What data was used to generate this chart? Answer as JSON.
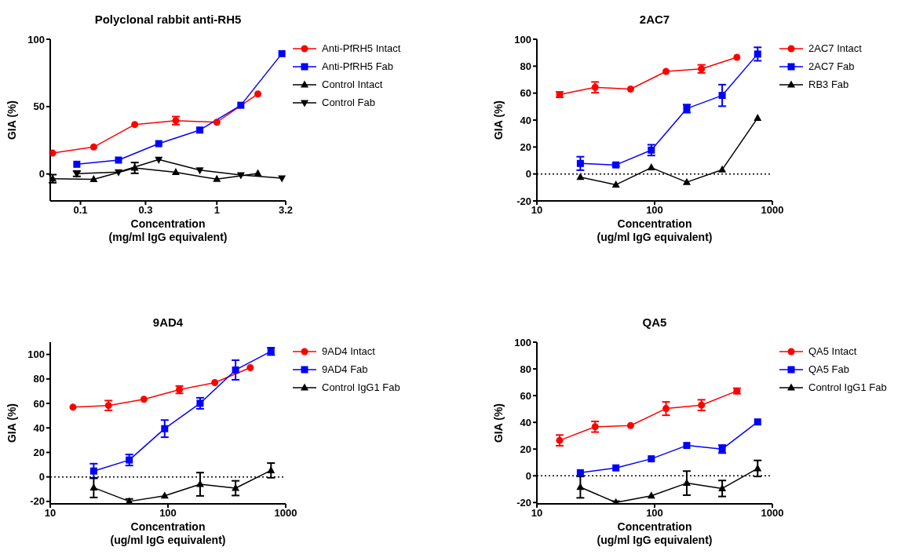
{
  "chart_data": [
    {
      "type": "line",
      "title": "Polyclonal rabbit anti-RH5",
      "xlabel": "Concentration\n(mg/ml IgG equivalent)",
      "ylabel": "GIA (%)",
      "log": "x",
      "xlim": [
        0.06,
        3.2
      ],
      "xticks": [
        0.1,
        0.3,
        1,
        3.2
      ],
      "ylim": [
        -20,
        100
      ],
      "yticks": [
        0,
        50,
        100
      ],
      "legend": "top right",
      "series": [
        {
          "name": "Anti-PfRH5 Intact",
          "color": "#ff0000",
          "marker": "circle",
          "x": [
            0.0625,
            0.125,
            0.25,
            0.5,
            1,
            2
          ],
          "values": [
            15.5,
            20,
            36.7,
            39.6,
            38.4,
            59.4
          ],
          "errors": [
            null,
            null,
            null,
            3,
            null,
            null
          ]
        },
        {
          "name": "Anti-PfRH5 Fab",
          "color": "#0000ff",
          "marker": "square",
          "x": [
            0.094,
            0.19,
            0.375,
            0.75,
            1.5,
            3
          ],
          "values": [
            7.2,
            10.3,
            22.5,
            32.6,
            51,
            89.3
          ]
        },
        {
          "name": "Control Intact",
          "color": "#000000",
          "marker": "triangle",
          "x": [
            0.0625,
            0.125,
            0.25,
            0.5,
            1,
            2
          ],
          "values": [
            -3.5,
            -4,
            4.5,
            1.2,
            -3.9,
            0.4
          ],
          "errors": [
            3,
            null,
            4,
            null,
            null,
            null
          ]
        },
        {
          "name": "Control Fab",
          "color": "#000000",
          "marker": "triangle-down",
          "x": [
            0.094,
            0.19,
            0.375,
            0.75,
            1.5,
            3
          ],
          "values": [
            0.2,
            1.4,
            10.7,
            2.9,
            -0.8,
            -3.1
          ],
          "errors": [
            2,
            null,
            null,
            null,
            null,
            null
          ]
        }
      ]
    },
    {
      "type": "line",
      "title": "2AC7",
      "xlabel": "Concentration\n(ug/ml IgG equivalent)",
      "ylabel": "GIA (%)",
      "log": "x",
      "xlim": [
        10,
        1000
      ],
      "xticks": [
        10,
        100,
        1000
      ],
      "ylim": [
        -20,
        100
      ],
      "yticks": [
        -20,
        0,
        20,
        40,
        60,
        80,
        100
      ],
      "legend": "top right",
      "ref_lines": [
        {
          "axis": "y",
          "value": 0,
          "line_style": "dotted"
        }
      ],
      "series": [
        {
          "name": "2AC7 Intact",
          "color": "#ff0000",
          "marker": "circle",
          "x": [
            15.6,
            31.25,
            62.5,
            125,
            250,
            500
          ],
          "values": [
            58.9,
            64.3,
            63,
            76.1,
            78,
            86.6
          ],
          "errors": [
            2,
            4,
            null,
            null,
            3,
            null
          ]
        },
        {
          "name": "2AC7 Fab",
          "color": "#0000ff",
          "marker": "square",
          "x": [
            23.4,
            46.9,
            93.75,
            187.5,
            375,
            750
          ],
          "values": [
            7.8,
            6.7,
            17.7,
            48.5,
            58.3,
            89
          ],
          "errors": [
            5,
            1,
            4,
            3,
            8,
            5
          ]
        },
        {
          "name": "RB3 Fab",
          "color": "#000000",
          "marker": "triangle",
          "x": [
            23.4,
            46.9,
            93.75,
            187.5,
            375,
            750
          ],
          "values": [
            -2.4,
            -8,
            4.7,
            -6.1,
            3.2,
            41.5
          ]
        }
      ]
    },
    {
      "type": "line",
      "title": "9AD4",
      "xlabel": "Concentration\n(ug/ml IgG equivalent)",
      "ylabel": "GIA (%)",
      "log": "x",
      "xlim": [
        10,
        1000
      ],
      "xticks": [
        10,
        100,
        1000
      ],
      "ylim": [
        -22,
        110
      ],
      "yticks": [
        -20,
        0,
        20,
        40,
        60,
        80,
        100
      ],
      "legend": "top right",
      "ref_lines": [
        {
          "axis": "y",
          "value": 0,
          "line_style": "dotted"
        }
      ],
      "series": [
        {
          "name": "9AD4 Intact",
          "color": "#ff0000",
          "marker": "circle",
          "x": [
            15.6,
            31.25,
            62.5,
            125,
            250,
            500
          ],
          "values": [
            56.9,
            58.3,
            63.4,
            71.2,
            77,
            89.2
          ],
          "errors": [
            null,
            4,
            null,
            3,
            null,
            null
          ]
        },
        {
          "name": "9AD4 Fab",
          "color": "#0000ff",
          "marker": "square",
          "x": [
            23.4,
            46.9,
            93.75,
            187.5,
            375,
            750
          ],
          "values": [
            4.8,
            13.8,
            39.4,
            60.1,
            87.3,
            102.5
          ],
          "errors": [
            6,
            4.5,
            7,
            4.5,
            8,
            3
          ]
        },
        {
          "name": "Control IgG1 Fab",
          "color": "#000000",
          "marker": "triangle",
          "x": [
            23.4,
            46.9,
            93.75,
            187.5,
            375,
            750
          ],
          "values": [
            -8.8,
            -20,
            -15.4,
            -6,
            -9.2,
            5.3
          ],
          "errors": [
            8,
            2,
            null,
            9.5,
            6,
            6
          ]
        }
      ]
    },
    {
      "type": "line",
      "title": "QA5",
      "xlabel": "Concentration\n(ug/ml IgG equivalent)",
      "ylabel": "GIA (%)",
      "log": "x",
      "xlim": [
        10,
        1000
      ],
      "xticks": [
        10,
        100,
        1000
      ],
      "ylim": [
        -21,
        100
      ],
      "yticks": [
        -20,
        0,
        20,
        40,
        60,
        80,
        100
      ],
      "legend": "top right",
      "ref_lines": [
        {
          "axis": "y",
          "value": 0,
          "line_style": "dotted"
        }
      ],
      "series": [
        {
          "name": "QA5 Intact",
          "color": "#ff0000",
          "marker": "circle",
          "x": [
            15.6,
            31.25,
            62.5,
            125,
            250,
            500
          ],
          "values": [
            26.5,
            36.7,
            37.6,
            50.3,
            52.9,
            63.5
          ],
          "errors": [
            4,
            4,
            null,
            5,
            4,
            2
          ]
        },
        {
          "name": "QA5 Fab",
          "color": "#0000ff",
          "marker": "square",
          "x": [
            23.4,
            46.9,
            93.75,
            187.5,
            375,
            750
          ],
          "values": [
            2.3,
            5.9,
            12.7,
            22.7,
            20,
            40.3
          ],
          "errors": [
            null,
            null,
            null,
            null,
            3,
            null
          ]
        },
        {
          "name": "Control IgG1 Fab",
          "color": "#000000",
          "marker": "triangle",
          "x": [
            23.4,
            46.9,
            93.75,
            187.5,
            375,
            750
          ],
          "values": [
            -8.5,
            -20,
            -15,
            -5.5,
            -9.5,
            5.5
          ],
          "errors": [
            8,
            1,
            null,
            9,
            6,
            6
          ]
        }
      ]
    }
  ]
}
